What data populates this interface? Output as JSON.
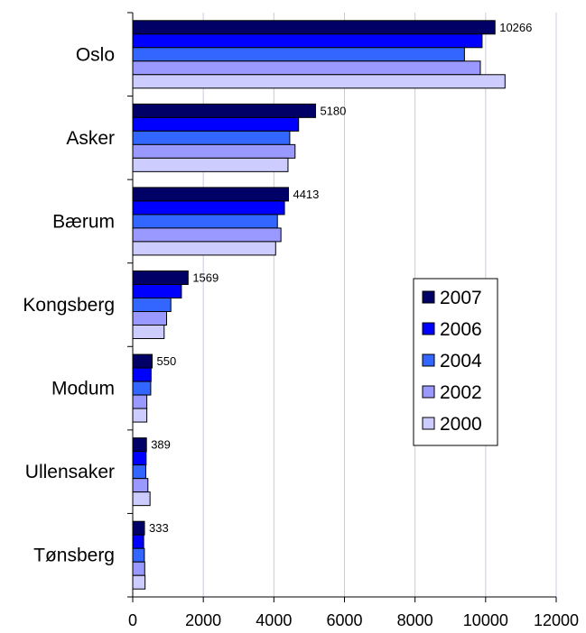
{
  "chart_data": {
    "type": "bar",
    "orientation": "horizontal",
    "categories": [
      "Oslo",
      "Asker",
      "Bærum",
      "Kongsberg",
      "Modum",
      "Ullensaker",
      "Tønsberg"
    ],
    "series": [
      {
        "name": "2007",
        "color": "#000066",
        "values": [
          10266,
          5180,
          4413,
          1569,
          550,
          389,
          333
        ]
      },
      {
        "name": "2006",
        "color": "#0000ff",
        "values": [
          9900,
          4700,
          4300,
          1380,
          520,
          380,
          310
        ]
      },
      {
        "name": "2004",
        "color": "#3366ff",
        "values": [
          9400,
          4450,
          4100,
          1080,
          510,
          370,
          330
        ]
      },
      {
        "name": "2002",
        "color": "#9999ff",
        "values": [
          9850,
          4600,
          4200,
          960,
          400,
          430,
          340
        ]
      },
      {
        "name": "2000",
        "color": "#ccccff",
        "values": [
          10550,
          4400,
          4050,
          890,
          400,
          490,
          350
        ]
      }
    ],
    "data_labels": [
      "10266",
      "5180",
      "4413",
      "1569",
      "550",
      "389",
      "333"
    ],
    "xlim": [
      0,
      12000
    ],
    "xticks": [
      "0",
      "2000",
      "4000",
      "6000",
      "8000",
      "10000",
      "12000"
    ],
    "grid": true,
    "legend_position": "right"
  }
}
